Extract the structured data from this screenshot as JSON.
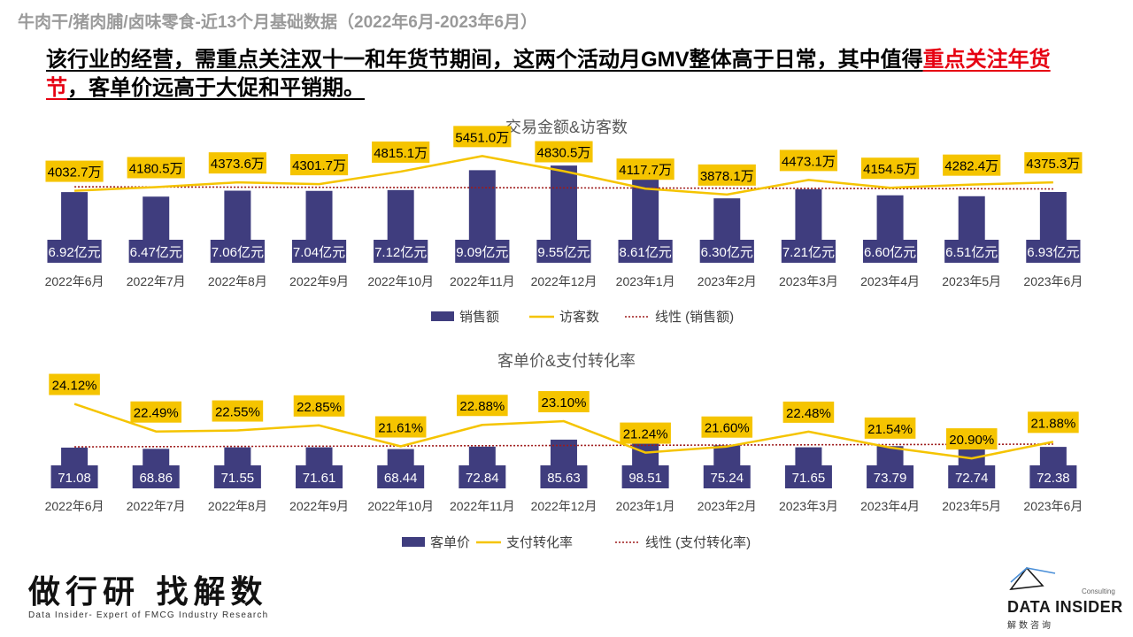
{
  "header": {
    "subtitle": "牛肉干/猪肉脯/卤味零食-近13个月基础数据（2022年6月-2023年6月）",
    "headline_part1": "该行业的经营，需重点关注双十一和年货节期间，这两个活动月GMV整体高于日常，其中值得",
    "headline_red": "重点关注年货节",
    "headline_part2": "，客单价远高于大促和平销期。"
  },
  "chart_data": [
    {
      "type": "bar",
      "title": "交易金额&访客数",
      "categories": [
        "2022年6月",
        "2022年7月",
        "2022年8月",
        "2022年9月",
        "2022年10月",
        "2022年11月",
        "2022年12月",
        "2023年1月",
        "2023年2月",
        "2023年3月",
        "2023年4月",
        "2023年5月",
        "2023年6月"
      ],
      "series": [
        {
          "name": "销售额",
          "type": "bar",
          "values": [
            6.92,
            6.47,
            7.06,
            7.04,
            7.12,
            9.09,
            9.55,
            8.61,
            6.3,
            7.21,
            6.6,
            6.51,
            6.93
          ],
          "labels": [
            "6.92亿元",
            "6.47亿元",
            "7.06亿元",
            "7.04亿元",
            "7.12亿元",
            "9.09亿元",
            "9.55亿元",
            "8.61亿元",
            "6.30亿元",
            "7.21亿元",
            "6.60亿元",
            "6.51亿元",
            "6.93亿元"
          ]
        },
        {
          "name": "访客数",
          "type": "line",
          "values": [
            4032.7,
            4180.5,
            4373.6,
            4301.7,
            4815.1,
            5451.0,
            4830.5,
            4117.7,
            3878.1,
            4473.1,
            4154.5,
            4282.4,
            4375.3
          ],
          "labels": [
            "4032.7万",
            "4180.5万",
            "4373.6万",
            "4301.7万",
            "4815.1万",
            "5451.0万",
            "4830.5万",
            "4117.7万",
            "3878.1万",
            "4473.1万",
            "4154.5万",
            "4282.4万",
            "4375.3万"
          ]
        },
        {
          "name": "线性 (销售额)",
          "type": "trendline",
          "of": "销售额"
        }
      ],
      "legend": "bottom",
      "grid": false
    },
    {
      "type": "bar",
      "title": "客单价&支付转化率",
      "categories": [
        "2022年6月",
        "2022年7月",
        "2022年8月",
        "2022年9月",
        "2022年10月",
        "2022年11月",
        "2022年12月",
        "2023年1月",
        "2023年2月",
        "2023年3月",
        "2023年4月",
        "2023年5月",
        "2023年6月"
      ],
      "series": [
        {
          "name": "客单价",
          "type": "bar",
          "values": [
            71.08,
            68.86,
            71.55,
            71.61,
            68.44,
            72.84,
            85.63,
            98.51,
            75.24,
            71.65,
            73.79,
            72.74,
            72.38
          ],
          "labels": [
            "71.08",
            "68.86",
            "71.55",
            "71.61",
            "68.44",
            "72.84",
            "85.63",
            "98.51",
            "75.24",
            "71.65",
            "73.79",
            "72.74",
            "72.38"
          ]
        },
        {
          "name": "支付转化率",
          "type": "line",
          "values": [
            24.12,
            22.49,
            22.55,
            22.85,
            21.61,
            22.88,
            23.1,
            21.24,
            21.6,
            22.48,
            21.54,
            20.9,
            21.88
          ],
          "labels": [
            "24.12%",
            "22.49%",
            "22.55%",
            "22.85%",
            "21.61%",
            "22.88%",
            "23.10%",
            "21.24%",
            "21.60%",
            "22.48%",
            "21.54%",
            "20.90%",
            "21.88%"
          ]
        },
        {
          "name": "线性 (支付转化率)",
          "type": "trendline",
          "of": "支付转化率"
        }
      ],
      "legend": "bottom",
      "grid": false
    }
  ],
  "colors": {
    "bar": "#3f3d7e",
    "line": "#f5c400",
    "trend": "#9e1b1b",
    "label_bg": "#f5c400"
  },
  "footer": {
    "slogan_cn": "做行研 找解数",
    "slogan_en": "Data Insider- Expert of FMCG Industry Research",
    "logo_consult": "Consulting",
    "logo_name": "DATA INSIDER",
    "logo_cn": "解数咨询"
  }
}
